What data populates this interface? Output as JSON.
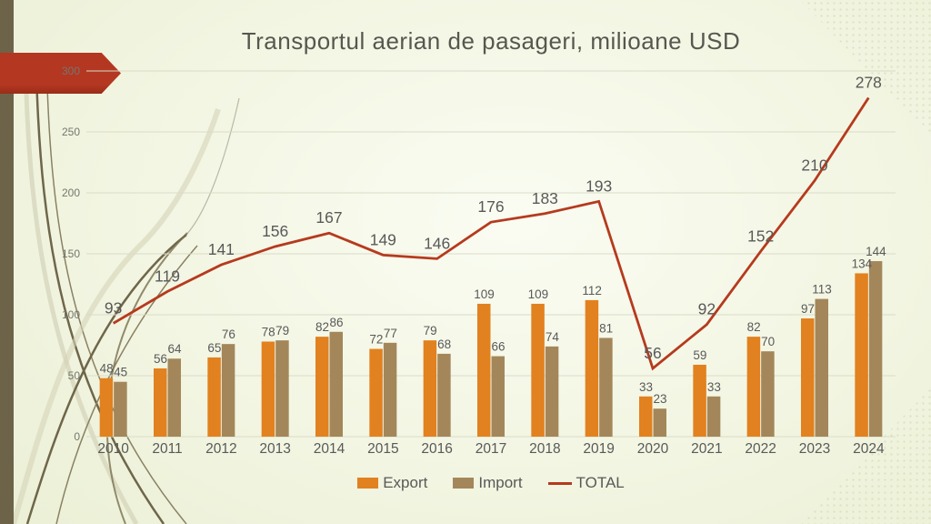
{
  "slide": {
    "title": "Transportul aerian de pasageri, milioane USD"
  },
  "legend": {
    "export": "Export",
    "import": "Import",
    "total": "TOTAL"
  },
  "colors": {
    "export_bar": "#e2811f",
    "import_bar": "#a3875a",
    "total_line": "#b63a1e",
    "arrow_banner": "#b43722",
    "arrow_banner_dark": "#992c18",
    "sidebar": "#6c6349",
    "label_text": "#595959",
    "axis_text": "#76766e",
    "gridline": "#dadcc8"
  },
  "chart_data": {
    "type": "bar",
    "subtype": "grouped-bars-with-line-overlay",
    "title": "Transportul aerian de pasageri, milioane USD",
    "categories": [
      "2010",
      "2011",
      "2012",
      "2013",
      "2014",
      "2015",
      "2016",
      "2017",
      "2018",
      "2019",
      "2020",
      "2021",
      "2022",
      "2023",
      "2024"
    ],
    "series": [
      {
        "name": "Export",
        "type": "bar",
        "values": [
          48,
          56,
          65,
          78,
          82,
          72,
          79,
          109,
          109,
          112,
          33,
          59,
          82,
          97,
          134
        ]
      },
      {
        "name": "Import",
        "type": "bar",
        "values": [
          45,
          64,
          76,
          79,
          86,
          77,
          68,
          66,
          74,
          81,
          23,
          33,
          70,
          113,
          144
        ]
      },
      {
        "name": "TOTAL",
        "type": "line",
        "values": [
          93,
          119,
          141,
          156,
          167,
          149,
          146,
          176,
          183,
          193,
          56,
          92,
          152,
          210,
          278
        ]
      }
    ],
    "xlabel": "",
    "ylabel": "",
    "ylim": [
      0,
      300
    ],
    "yticks": [
      0,
      50,
      100,
      150,
      200,
      250,
      300
    ],
    "grid": true,
    "data_labels": true,
    "legend_position": "bottom"
  }
}
